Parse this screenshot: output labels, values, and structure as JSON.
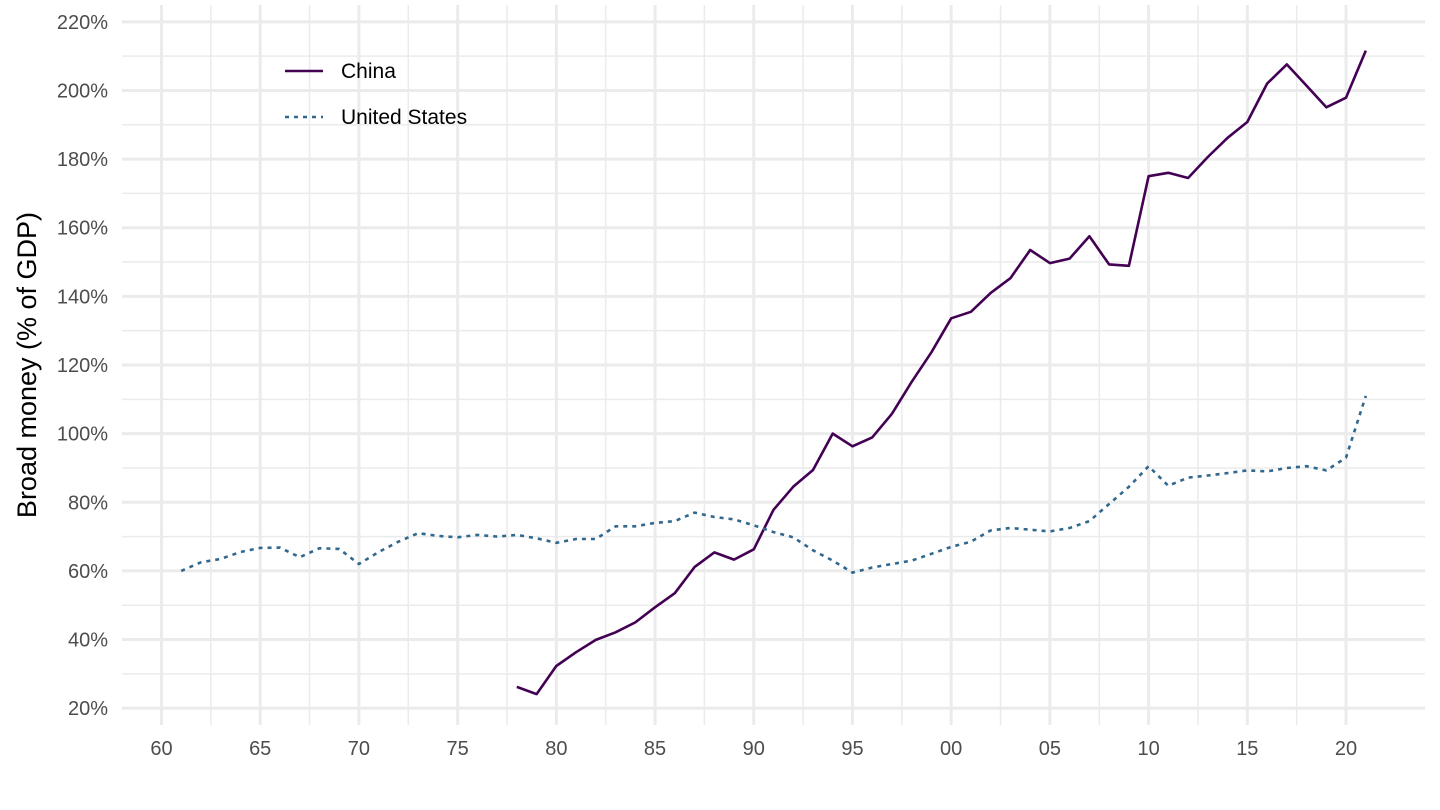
{
  "chart_data": {
    "type": "line",
    "ylabel": "Broad money (% of GDP)",
    "xlabel": "",
    "xlim": [
      1961,
      2021
    ],
    "ylim": [
      20,
      220
    ],
    "grid": true,
    "legend_position": "top-left",
    "x_ticks": [
      1960,
      1965,
      1970,
      1975,
      1980,
      1985,
      1990,
      1995,
      2000,
      2005,
      2010,
      2015,
      2020
    ],
    "x_tick_labels": [
      "60",
      "65",
      "70",
      "75",
      "80",
      "85",
      "90",
      "95",
      "00",
      "05",
      "10",
      "15",
      "20"
    ],
    "y_ticks": [
      20,
      40,
      60,
      80,
      100,
      120,
      140,
      160,
      180,
      200,
      220
    ],
    "y_tick_labels": [
      "20%",
      "40%",
      "60%",
      "80%",
      "100%",
      "120%",
      "140%",
      "160%",
      "180%",
      "200%",
      "220%"
    ],
    "series": [
      {
        "name": "China",
        "color": "#440154",
        "dash": "solid",
        "x": [
          1978,
          1979,
          1980,
          1981,
          1982,
          1983,
          1984,
          1985,
          1986,
          1987,
          1988,
          1989,
          1990,
          1991,
          1992,
          1993,
          1994,
          1995,
          1996,
          1997,
          1998,
          1999,
          2000,
          2001,
          2002,
          2003,
          2004,
          2005,
          2006,
          2007,
          2008,
          2009,
          2010,
          2011,
          2012,
          2013,
          2014,
          2015,
          2016,
          2017,
          2018,
          2019,
          2020,
          2021
        ],
        "values": [
          26.2,
          24.1,
          32.3,
          36.3,
          39.9,
          42.1,
          45.0,
          49.4,
          53.5,
          61.1,
          65.4,
          63.3,
          66.3,
          77.8,
          84.5,
          89.4,
          100.0,
          96.3,
          98.9,
          105.8,
          115.1,
          123.7,
          133.6,
          135.5,
          141.0,
          145.3,
          153.5,
          149.7,
          151.0,
          157.5,
          149.3,
          148.9,
          175.0,
          176.0,
          174.5,
          180.6,
          186.2,
          190.8,
          202.0,
          207.6,
          201.4,
          195.1,
          197.9,
          211.6
        ]
      },
      {
        "name": "United States",
        "color": "#31688e",
        "dash": "dashed",
        "x": [
          1961,
          1962,
          1963,
          1964,
          1965,
          1966,
          1967,
          1968,
          1969,
          1970,
          1971,
          1972,
          1973,
          1974,
          1975,
          1976,
          1977,
          1978,
          1979,
          1980,
          1981,
          1982,
          1983,
          1984,
          1985,
          1986,
          1987,
          1988,
          1989,
          1990,
          1991,
          1992,
          1993,
          1994,
          1995,
          1996,
          1997,
          1998,
          1999,
          2000,
          2001,
          2002,
          2003,
          2004,
          2005,
          2006,
          2007,
          2008,
          2009,
          2010,
          2011,
          2012,
          2013,
          2014,
          2015,
          2016,
          2017,
          2018,
          2019,
          2020,
          2021
        ],
        "values": [
          60.0,
          62.5,
          63.5,
          65.5,
          66.7,
          66.8,
          64.0,
          66.6,
          66.4,
          62.0,
          65.5,
          68.5,
          71.0,
          70.2,
          69.8,
          70.5,
          70.0,
          70.5,
          69.5,
          68.2,
          69.3,
          69.3,
          73.0,
          73.0,
          74.0,
          74.5,
          77.0,
          75.7,
          75.0,
          73.3,
          71.3,
          69.8,
          66.0,
          63.0,
          59.5,
          61.0,
          62.0,
          63.0,
          65.0,
          67.0,
          68.5,
          71.8,
          72.5,
          72.0,
          71.5,
          72.5,
          74.5,
          79.5,
          84.5,
          90.5,
          84.8,
          87.2,
          87.8,
          88.5,
          89.3,
          89.0,
          90.0,
          90.5,
          89.3,
          93.0,
          111.0
        ]
      }
    ]
  }
}
